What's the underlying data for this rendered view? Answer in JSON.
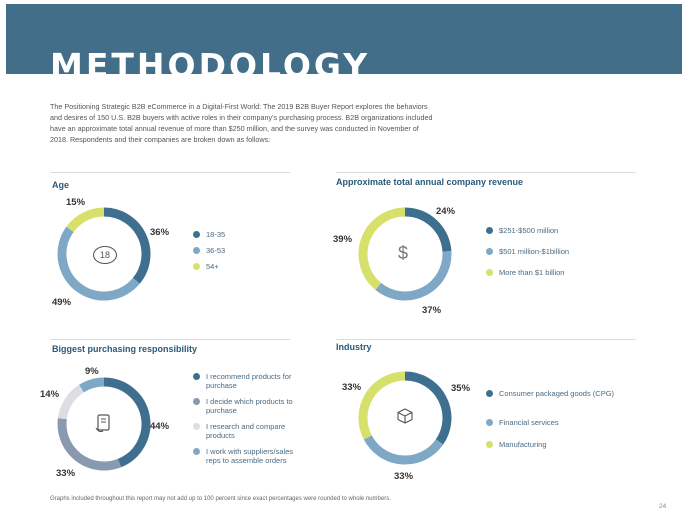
{
  "header": {
    "title": "METHODOLOGY"
  },
  "intro": "The Positioning Strategic B2B eCommerce in a Digital-First World: The 2019 B2B Buyer Report explores the behaviors and desires of 150 U.S. B2B buyers with active roles in their company's purchasing process. B2B organizations included have an approximate total annual revenue of more than $250 million, and the survey was conducted in November of 2018. Respondents and their companies are broken down as follows:",
  "colors": {
    "dark": "#3f6f8e",
    "mid": "#7ea8c6",
    "lime": "#d6e06a",
    "light": "#dcdee4",
    "grayblue": "#8899b0"
  },
  "sections": {
    "age": {
      "title": "Age",
      "icon": "age-18-icon",
      "icon_text": "18",
      "slices": [
        {
          "label": "18-35",
          "value": 36,
          "pct": "36%",
          "color": "#3f6f8e"
        },
        {
          "label": "36-53",
          "value": 49,
          "pct": "49%",
          "color": "#7ea8c6"
        },
        {
          "label": "54+",
          "value": 15,
          "pct": "15%",
          "color": "#d6e06a"
        }
      ]
    },
    "revenue": {
      "title": "Approximate total annual company revenue",
      "icon": "dollar-icon",
      "icon_text": "$",
      "slices": [
        {
          "label": "$251-$500 million",
          "value": 24,
          "pct": "24%",
          "color": "#3f6f8e"
        },
        {
          "label": "$501 million-$1billion",
          "value": 37,
          "pct": "37%",
          "color": "#7ea8c6"
        },
        {
          "label": "More than $1 billion",
          "value": 39,
          "pct": "39%",
          "color": "#d6e06a"
        }
      ]
    },
    "responsibility": {
      "title": "Biggest purchasing responsibility",
      "icon": "document-icon",
      "slices": [
        {
          "label": "I recommend products for purchase",
          "value": 44,
          "pct": "44%",
          "color": "#3f6f8e"
        },
        {
          "label": "I decide which products to purchase",
          "value": 33,
          "pct": "33%",
          "color": "#8899b0"
        },
        {
          "label": "I research and compare products",
          "value": 14,
          "pct": "14%",
          "color": "#dcdee4"
        },
        {
          "label": "I work with suppliers/sales reps to assemble orders",
          "value": 9,
          "pct": "9%",
          "color": "#7ea8c6"
        }
      ]
    },
    "industry": {
      "title": "Industry",
      "icon": "box-icon",
      "slices": [
        {
          "label": "Consumer packaged goods (CPG)",
          "value": 35,
          "pct": "35%",
          "color": "#3f6f8e"
        },
        {
          "label": "Financial services",
          "value": 33,
          "pct": "33%",
          "color": "#7ea8c6"
        },
        {
          "label": "Manufacturing",
          "value": 33,
          "pct": "33%",
          "color": "#d6e06a"
        }
      ]
    }
  },
  "footnote": "Graphs included throughout this report may not add up to 100 percent since exact percentages were rounded to whole numbers.",
  "page_number": "24"
}
